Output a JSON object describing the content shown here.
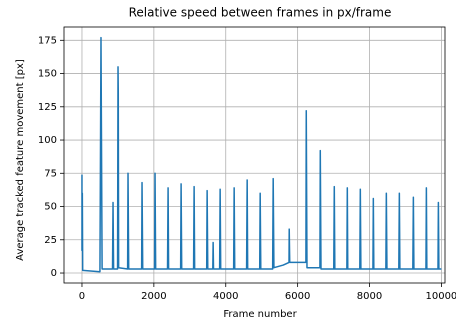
{
  "chart_data": {
    "type": "line",
    "title": "Relative speed between frames in px/frame",
    "x_label": "Frame number",
    "y_label": "Average tracked feature movement [px]",
    "series": [
      {
        "color": "#1f77b4",
        "x": [
          0,
          0,
          10,
          20,
          500,
          529,
          560,
          850,
          864,
          880,
          990,
          1003,
          1010,
          1020,
          1270,
          1281,
          1300,
          1660,
          1671,
          1690,
          2020,
          2033,
          2050,
          2380,
          2396,
          2410,
          2745,
          2758,
          2775,
          3105,
          3120,
          3135,
          3470,
          3482,
          3500,
          3640,
          3649,
          3660,
          3830,
          3844,
          3860,
          4220,
          4234,
          4250,
          4580,
          4596,
          4610,
          4945,
          4958,
          4975,
          5305,
          5320,
          5340,
          5600,
          5760,
          5766,
          5780,
          6230,
          6240,
          6260,
          6620,
          6630,
          6650,
          7005,
          7020,
          7035,
          7370,
          7382,
          7395,
          7730,
          7744,
          7760,
          8095,
          8106,
          8120,
          8455,
          8468,
          8485,
          8815,
          8830,
          8845,
          9205,
          9220,
          9235,
          9570,
          9582,
          9595,
          9905,
          9916,
          9930,
          10000
        ],
        "values": [
          74,
          17,
          60,
          2,
          1,
          177,
          3,
          3,
          53,
          3,
          3,
          155,
          135,
          4,
          3,
          75,
          3,
          3,
          68,
          3,
          3,
          75,
          3,
          3,
          64,
          3,
          3,
          67,
          3,
          3,
          65,
          3,
          3,
          62,
          3,
          3,
          23,
          3,
          3,
          63,
          3,
          3,
          64,
          3,
          3,
          70,
          3,
          3,
          60,
          3,
          3,
          71,
          4,
          6,
          8,
          33,
          8,
          8,
          122,
          4,
          4,
          92,
          3,
          3,
          65,
          3,
          3,
          64,
          3,
          3,
          63,
          3,
          3,
          56,
          3,
          3,
          60,
          3,
          3,
          60,
          3,
          3,
          57,
          3,
          3,
          64,
          3,
          3,
          53,
          3,
          3
        ]
      }
    ],
    "xlim": [
      -500,
      10100
    ],
    "xticks": [
      0,
      2000,
      4000,
      6000,
      8000,
      10000
    ],
    "ylim": [
      -7.5,
      185
    ],
    "yticks": [
      0,
      25,
      50,
      75,
      100,
      125,
      150,
      175
    ],
    "grid": true
  }
}
